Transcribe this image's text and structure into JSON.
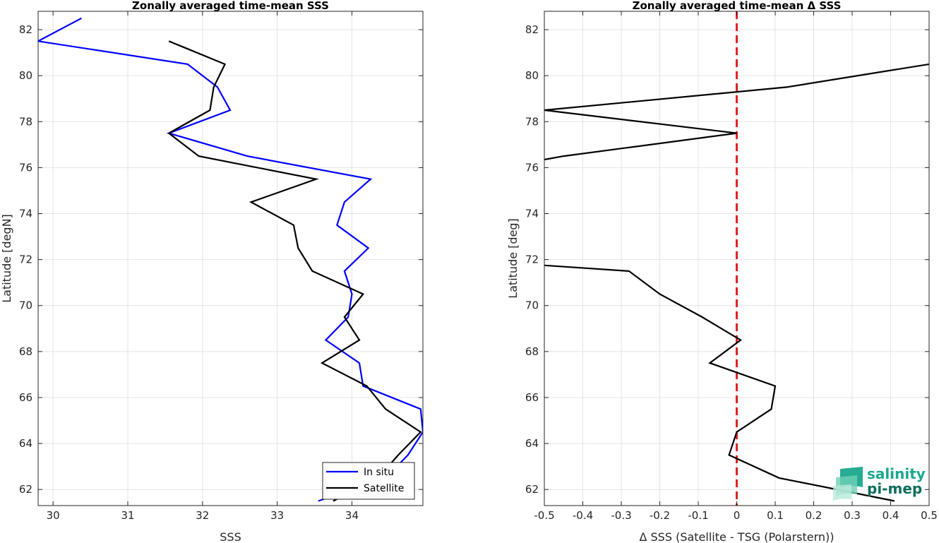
{
  "chart_data": [
    {
      "type": "line",
      "title": "Zonally averaged time-mean SSS",
      "xlabel": "SSS",
      "ylabel": "Latitude [degN]",
      "xlim": [
        29.8,
        34.95
      ],
      "ylim": [
        61.3,
        82.8
      ],
      "xticks": [
        30,
        31,
        32,
        33,
        34
      ],
      "xtick_labels": [
        "30",
        "31",
        "32",
        "33",
        "34"
      ],
      "yticks": [
        62,
        64,
        66,
        68,
        70,
        72,
        74,
        76,
        78,
        80,
        82
      ],
      "ytick_labels": [
        "62",
        "64",
        "66",
        "68",
        "70",
        "72",
        "74",
        "76",
        "78",
        "80",
        "82"
      ],
      "grid": true,
      "legend": "bottom-right",
      "series": [
        {
          "name": "In situ",
          "color": "#0000ff",
          "points": [
            [
              30.38,
              82.5
            ],
            [
              29.8,
              81.5
            ],
            [
              31.8,
              80.5
            ],
            [
              32.2,
              79.5
            ],
            [
              32.37,
              78.5
            ],
            [
              31.55,
              77.5
            ],
            [
              32.6,
              76.5
            ],
            [
              34.25,
              75.5
            ],
            [
              33.9,
              74.5
            ],
            [
              33.8,
              73.5
            ],
            [
              34.22,
              72.5
            ],
            [
              33.9,
              71.5
            ],
            [
              34.0,
              70.5
            ],
            [
              33.95,
              69.5
            ],
            [
              33.65,
              68.5
            ],
            [
              34.1,
              67.5
            ],
            [
              34.15,
              66.5
            ],
            [
              34.92,
              65.5
            ],
            [
              34.95,
              64.5
            ],
            [
              34.75,
              63.5
            ],
            [
              34.45,
              62.5
            ],
            [
              33.55,
              61.5
            ]
          ]
        },
        {
          "name": "Satellite",
          "color": "#000000",
          "points": [
            [
              31.55,
              81.5
            ],
            [
              32.3,
              80.5
            ],
            [
              32.15,
              79.5
            ],
            [
              32.1,
              78.5
            ],
            [
              31.55,
              77.5
            ],
            [
              31.95,
              76.5
            ],
            [
              33.52,
              75.5
            ],
            [
              32.65,
              74.5
            ],
            [
              33.22,
              73.5
            ],
            [
              33.28,
              72.5
            ],
            [
              33.47,
              71.5
            ],
            [
              34.15,
              70.5
            ],
            [
              33.9,
              69.5
            ],
            [
              34.1,
              68.5
            ],
            [
              33.6,
              67.5
            ],
            [
              34.2,
              66.5
            ],
            [
              34.45,
              65.5
            ],
            [
              34.92,
              64.5
            ],
            [
              34.62,
              63.5
            ],
            [
              34.35,
              62.5
            ],
            [
              33.75,
              61.5
            ]
          ]
        }
      ]
    },
    {
      "type": "line",
      "title": "Zonally averaged time-mean Δ SSS",
      "xlabel": "Δ SSS (Satellite - TSG (Polarstern))",
      "ylabel": "Latitude [deg]",
      "xlim": [
        -0.5,
        0.5
      ],
      "ylim": [
        61.3,
        82.8
      ],
      "xticks": [
        -0.5,
        -0.4,
        -0.3,
        -0.2,
        -0.1,
        0,
        0.1,
        0.2,
        0.3,
        0.4,
        0.5
      ],
      "xtick_labels": [
        "-0.5",
        "-0.4",
        "-0.3",
        "-0.2",
        "-0.1",
        "0",
        "0.1",
        "0.2",
        "0.3",
        "0.4",
        "0.5"
      ],
      "yticks": [
        62,
        64,
        66,
        68,
        70,
        72,
        74,
        76,
        78,
        80,
        82
      ],
      "ytick_labels": [
        "62",
        "64",
        "66",
        "68",
        "70",
        "72",
        "74",
        "76",
        "78",
        "80",
        "82"
      ],
      "grid": true,
      "reference_line": {
        "x": 0,
        "color": "#e32222",
        "style": "dashed"
      },
      "series": [
        {
          "color": "#000000",
          "segments": [
            [
              [
                0.5,
                80.5
              ],
              [
                0.13,
                79.5
              ],
              [
                -0.5,
                78.5
              ],
              [
                0.0,
                77.5
              ],
              [
                -0.45,
                76.5
              ],
              [
                -0.5,
                76.35
              ]
            ],
            [
              [
                -0.5,
                71.75
              ],
              [
                -0.28,
                71.5
              ],
              [
                -0.2,
                70.5
              ],
              [
                -0.09,
                69.5
              ],
              [
                0.01,
                68.5
              ],
              [
                -0.07,
                67.5
              ],
              [
                0.1,
                66.5
              ],
              [
                0.09,
                65.5
              ],
              [
                0.0,
                64.5
              ],
              [
                -0.02,
                63.5
              ],
              [
                0.11,
                62.5
              ],
              [
                0.41,
                61.5
              ]
            ]
          ]
        }
      ]
    }
  ],
  "logo": {
    "line1": "salinity",
    "line2": "pi-mep",
    "color1": "#1aa88c",
    "color2": "#0e6e5c"
  }
}
